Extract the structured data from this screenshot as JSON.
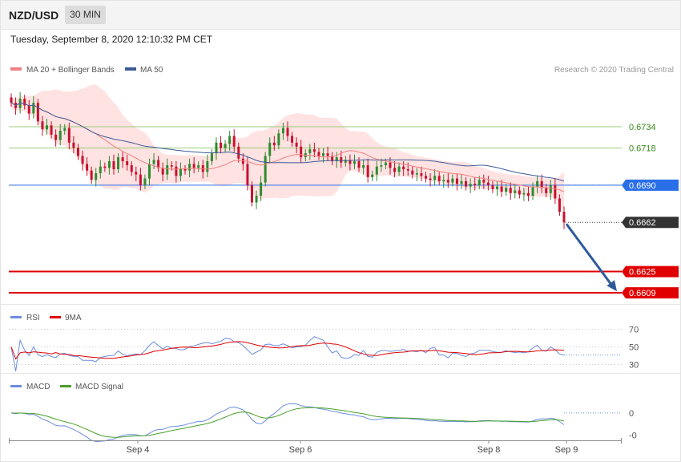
{
  "header": {
    "pair": "NZD/USD",
    "timeframe": "30 MIN"
  },
  "datetime": "Tuesday, September 8, 2020 12:10:32 PM CET",
  "credit": "Research © 2020 Trading Central",
  "colors": {
    "up": "#2e8b2e",
    "down": "#c8102e",
    "ma20": "#f08080",
    "ma50": "#3d5a99",
    "band": "#ffd6d6",
    "blue_level": "#2a6ee8",
    "red_level": "#e00000",
    "green_level": "#9acd7a",
    "rsi": "#6a8ddf",
    "rsi_ma": "#e00000",
    "macd": "#6a8ddf",
    "macd_signal": "#4aa02c",
    "arrow": "#2e5a9c"
  },
  "chart_data": [
    {
      "type": "candlestick",
      "panel": "price",
      "legend": [
        "MA 20 + Bollinger Bands",
        "MA 50"
      ],
      "ylim": [
        0.6603,
        0.6772
      ],
      "x_ticks": [
        "Sep 4",
        "Sep 6",
        "Sep 8",
        "Sep 9"
      ],
      "levels": [
        {
          "value": 0.6734,
          "label": "0.6734",
          "kind": "resistance"
        },
        {
          "value": 0.6718,
          "label": "0.6718",
          "kind": "resistance"
        },
        {
          "value": 0.669,
          "label": "0.6690",
          "kind": "pivot"
        },
        {
          "value": 0.6662,
          "label": "0.6662",
          "kind": "last"
        },
        {
          "value": 0.6625,
          "label": "0.6625",
          "kind": "support"
        },
        {
          "value": 0.6609,
          "label": "0.6609",
          "kind": "support"
        }
      ],
      "closes": [
        0.6752,
        0.6748,
        0.6755,
        0.675,
        0.6744,
        0.6752,
        0.6738,
        0.6732,
        0.6735,
        0.6728,
        0.6724,
        0.6731,
        0.6733,
        0.6722,
        0.6718,
        0.6712,
        0.6706,
        0.6701,
        0.6694,
        0.6699,
        0.6704,
        0.6703,
        0.6708,
        0.6702,
        0.6711,
        0.6708,
        0.6705,
        0.67,
        0.6698,
        0.669,
        0.6695,
        0.6706,
        0.6709,
        0.6703,
        0.6698,
        0.6705,
        0.6704,
        0.6697,
        0.6702,
        0.6701,
        0.6706,
        0.6703,
        0.6705,
        0.67,
        0.6708,
        0.6714,
        0.6722,
        0.6718,
        0.6721,
        0.6727,
        0.6719,
        0.671,
        0.6706,
        0.669,
        0.6677,
        0.6682,
        0.6692,
        0.6712,
        0.6722,
        0.672,
        0.6729,
        0.6733,
        0.6727,
        0.6722,
        0.6719,
        0.6711,
        0.6714,
        0.6717,
        0.6715,
        0.6712,
        0.6714,
        0.6712,
        0.6708,
        0.6711,
        0.6707,
        0.6709,
        0.6706,
        0.6708,
        0.6703,
        0.6705,
        0.6696,
        0.6698,
        0.6704,
        0.6705,
        0.6707,
        0.6703,
        0.67,
        0.6704,
        0.6702,
        0.6701,
        0.6698,
        0.6699,
        0.6697,
        0.6695,
        0.6694,
        0.6697,
        0.6693,
        0.6694,
        0.6692,
        0.6695,
        0.6691,
        0.6693,
        0.6689,
        0.6691,
        0.669,
        0.6694,
        0.6692,
        0.669,
        0.6687,
        0.6689,
        0.6685,
        0.6688,
        0.6684,
        0.6686,
        0.6683,
        0.6684,
        0.6682,
        0.6689,
        0.6693,
        0.6688,
        0.6684,
        0.669,
        0.668,
        0.667,
        0.6662
      ],
      "last": 0.6662,
      "target_arrow": {
        "from": 0.6662,
        "to": 0.6609
      }
    },
    {
      "type": "line",
      "panel": "rsi",
      "legend": [
        "RSI",
        "9MA"
      ],
      "ylim": [
        25,
        75
      ],
      "y_ticks": [
        70,
        50,
        30
      ]
    },
    {
      "type": "line",
      "panel": "macd",
      "legend": [
        "MACD",
        "MACD Signal"
      ],
      "ylim": [
        -0.0012,
        0.0009
      ],
      "y_ticks": [
        {
          "value": 0,
          "label": "0"
        },
        {
          "value": -0.001,
          "label": "-0"
        }
      ]
    }
  ]
}
